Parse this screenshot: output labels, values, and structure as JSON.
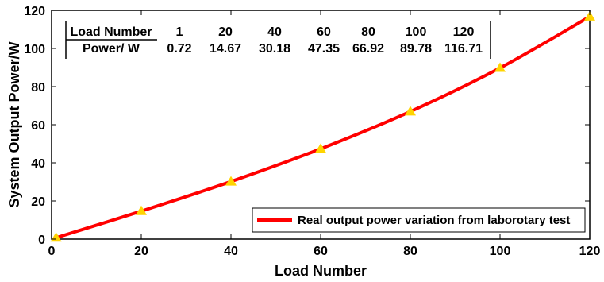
{
  "chart_data": {
    "type": "line",
    "xlabel": "Load Number",
    "ylabel": "System Output Power/W",
    "xlim": [
      0,
      120
    ],
    "ylim": [
      0,
      120
    ],
    "xticks": [
      0,
      20,
      40,
      60,
      80,
      100,
      120
    ],
    "yticks": [
      0,
      20,
      40,
      60,
      80,
      100,
      120
    ],
    "grid": false,
    "legend_position": "bottom-right",
    "series": [
      {
        "name": "Real output power variation from laborotary test",
        "color": "#ff0000",
        "marker_color": "#ffd400",
        "marker": "triangle",
        "x": [
          1,
          20,
          40,
          60,
          80,
          100,
          120
        ],
        "y": [
          0.72,
          14.67,
          30.18,
          47.35,
          66.92,
          89.78,
          116.71
        ]
      }
    ],
    "inset_table": {
      "row_headers": [
        "Load Number",
        "Power/ W"
      ],
      "columns": [
        "1",
        "20",
        "40",
        "60",
        "80",
        "100",
        "120"
      ],
      "values": [
        "0.72",
        "14.67",
        "30.18",
        "47.35",
        "66.92",
        "89.78",
        "116.71"
      ]
    }
  }
}
